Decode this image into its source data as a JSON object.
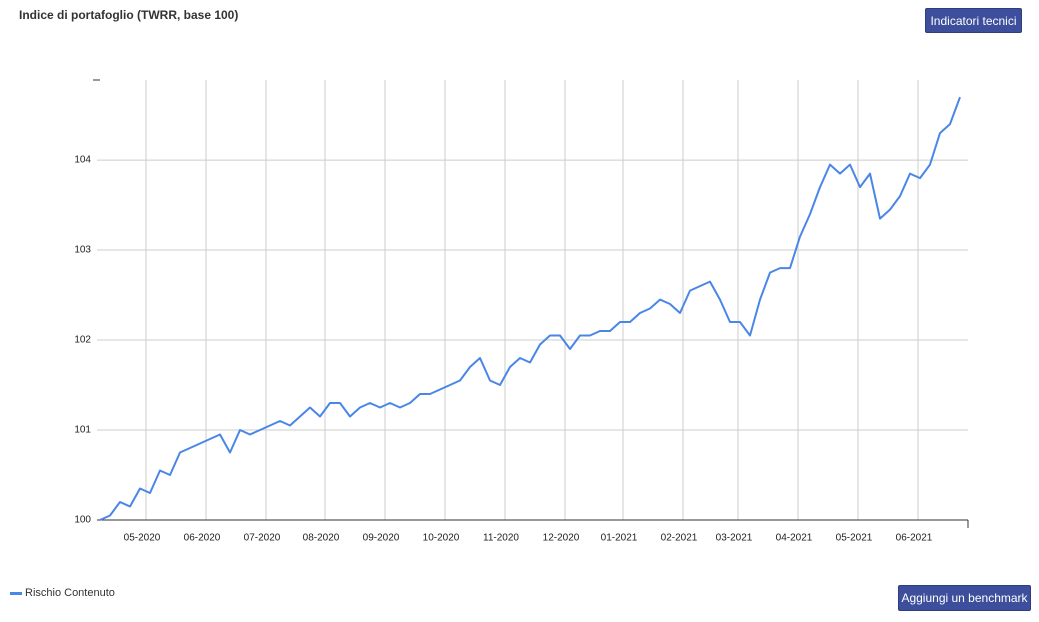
{
  "header": {
    "title": "Indice di portafoglio (TWRR, base 100)",
    "button": "Indicatori tecnici"
  },
  "footer": {
    "button": "Aggiungi un benchmark"
  },
  "chart_data": {
    "type": "line",
    "grid": true,
    "xlim": [
      -0.3,
      86.8
    ],
    "ylim": [
      100,
      104.89
    ],
    "yticks": [
      100,
      101,
      102,
      103,
      104
    ],
    "xticks": [
      {
        "value": 4.6,
        "label": "05-2020"
      },
      {
        "value": 10.6,
        "label": "06-2020"
      },
      {
        "value": 16.6,
        "label": "07-2020"
      },
      {
        "value": 22.5,
        "label": "08-2020"
      },
      {
        "value": 28.5,
        "label": "09-2020"
      },
      {
        "value": 34.5,
        "label": "10-2020"
      },
      {
        "value": 40.5,
        "label": "11-2020"
      },
      {
        "value": 46.5,
        "label": "12-2020"
      },
      {
        "value": 52.3,
        "label": "01-2021"
      },
      {
        "value": 58.3,
        "label": "02-2021"
      },
      {
        "value": 63.8,
        "label": "03-2021"
      },
      {
        "value": 69.8,
        "label": "04-2021"
      },
      {
        "value": 75.8,
        "label": "05-2021"
      },
      {
        "value": 81.8,
        "label": "06-2021"
      }
    ],
    "series": [
      {
        "name": "Rischio Contenuto",
        "color": "#4a86e8",
        "values": [
          100.0,
          100.05,
          100.2,
          100.15,
          100.35,
          100.3,
          100.55,
          100.5,
          100.75,
          100.8,
          100.85,
          100.9,
          100.95,
          100.75,
          101.0,
          100.95,
          101.0,
          101.05,
          101.1,
          101.05,
          101.15,
          101.25,
          101.15,
          101.3,
          101.3,
          101.15,
          101.25,
          101.3,
          101.25,
          101.3,
          101.25,
          101.3,
          101.4,
          101.4,
          101.45,
          101.5,
          101.55,
          101.7,
          101.8,
          101.55,
          101.5,
          101.7,
          101.8,
          101.75,
          101.95,
          102.05,
          102.05,
          101.9,
          102.05,
          102.05,
          102.1,
          102.1,
          102.2,
          102.2,
          102.3,
          102.35,
          102.45,
          102.4,
          102.3,
          102.55,
          102.6,
          102.65,
          102.45,
          102.2,
          102.2,
          102.05,
          102.45,
          102.75,
          102.8,
          102.8,
          103.15,
          103.4,
          103.7,
          103.95,
          103.85,
          103.95,
          103.7,
          103.85,
          103.35,
          103.45,
          103.6,
          103.85,
          103.8,
          103.95,
          104.3,
          104.4,
          104.7
        ]
      }
    ]
  }
}
